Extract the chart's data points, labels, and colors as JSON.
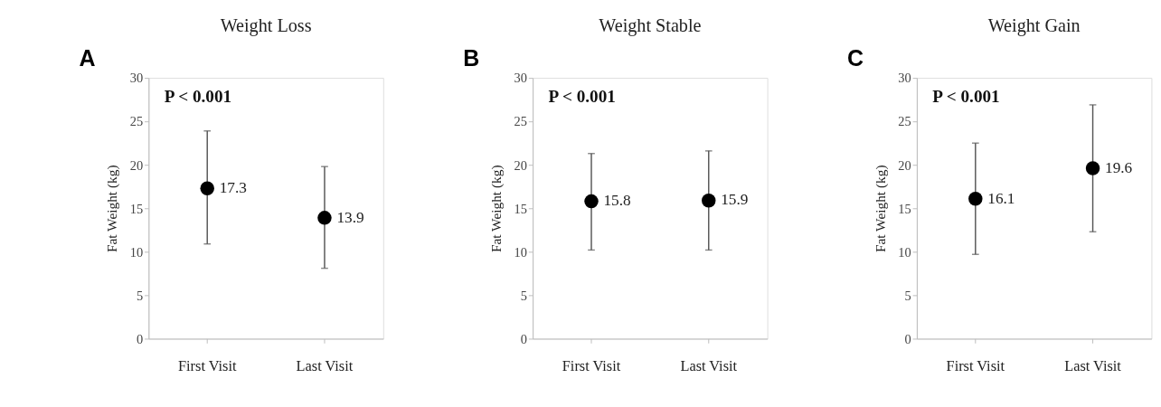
{
  "chart_data": [
    {
      "type": "scatter",
      "title": "Weight Loss",
      "ylabel": "Fat Weight  (kg)",
      "categories": [
        "First Visit",
        "Last Visit"
      ],
      "marker": "circle",
      "data_labels": true,
      "ylim": [
        0,
        30
      ],
      "yticks": [
        0,
        5,
        10,
        15,
        20,
        25,
        30
      ],
      "annotations": [
        "A",
        "P < 0.001"
      ],
      "series": [
        {
          "color": "#000000",
          "values": [
            17.3,
            13.9
          ],
          "errors": [
            [
              10.9,
              23.9
            ],
            [
              8.1,
              19.8
            ]
          ]
        }
      ]
    },
    {
      "type": "scatter",
      "title": "Weight Stable",
      "ylabel": "Fat Weight  (kg)",
      "categories": [
        "First Visit",
        "Last Visit"
      ],
      "marker": "circle",
      "data_labels": true,
      "ylim": [
        0,
        30
      ],
      "yticks": [
        0,
        5,
        10,
        15,
        20,
        25,
        30
      ],
      "annotations": [
        "B",
        "P < 0.001"
      ],
      "series": [
        {
          "color": "#000000",
          "values": [
            15.8,
            15.9
          ],
          "errors": [
            [
              10.2,
              21.3
            ],
            [
              10.2,
              21.6
            ]
          ]
        }
      ]
    },
    {
      "type": "scatter",
      "title": "Weight Gain",
      "ylabel": "Fat Weight  (kg)",
      "categories": [
        "First Visit",
        "Last Visit"
      ],
      "marker": "circle",
      "data_labels": true,
      "ylim": [
        0,
        30
      ],
      "yticks": [
        0,
        5,
        10,
        15,
        20,
        25,
        30
      ],
      "annotations": [
        "C",
        "P < 0.001"
      ],
      "series": [
        {
          "color": "#000000",
          "values": [
            16.1,
            19.6
          ],
          "errors": [
            [
              9.7,
              22.5
            ],
            [
              12.3,
              26.9
            ]
          ]
        }
      ]
    }
  ]
}
